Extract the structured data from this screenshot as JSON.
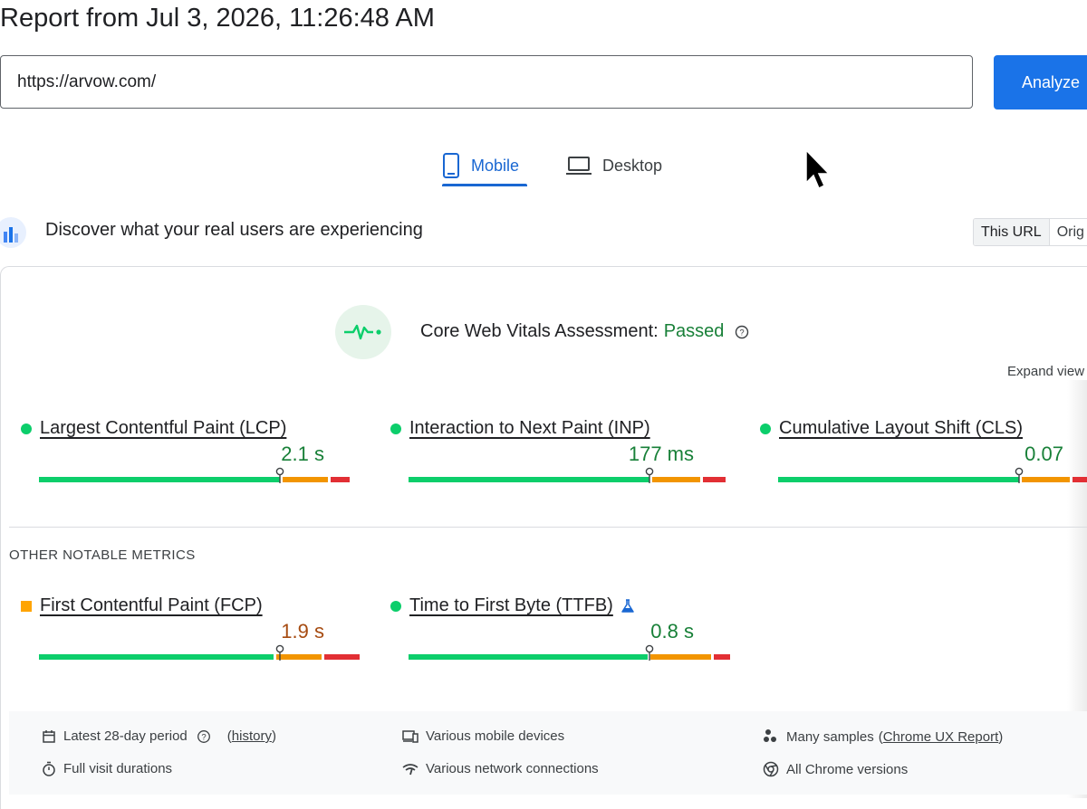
{
  "report": {
    "title": "Report from Jul 3, 2026, 11:26:48 AM"
  },
  "url_input": {
    "value": "https://arvow.com/"
  },
  "analyze_button": {
    "label": "Analyze"
  },
  "tabs": [
    {
      "label": "Mobile",
      "icon": "smartphone-icon",
      "selected": true
    },
    {
      "label": "Desktop",
      "icon": "laptop-icon",
      "selected": false
    }
  ],
  "discover": {
    "heading": "Discover what your real users are experiencing",
    "icon": "crux-chart-icon"
  },
  "url_toggle": {
    "this_url": "This URL",
    "origin": "Orig"
  },
  "assessment": {
    "label": "Core Web Vitals Assessment:",
    "status": "Passed",
    "status_color": "#188038",
    "help_icon": "help-circle-icon"
  },
  "expand_view": "Expand view",
  "core_metrics": [
    {
      "name": "Largest Contentful Paint (LCP)",
      "value": "2.1 s",
      "rating": "good",
      "distribution": {
        "good": 0.75,
        "needs_improvement": 0.14,
        "poor": 0.06
      },
      "marker": 0.75
    },
    {
      "name": "Interaction to Next Paint (INP)",
      "value": "177 ms",
      "rating": "good",
      "distribution": {
        "good": 0.75,
        "needs_improvement": 0.15,
        "poor": 0.07
      },
      "marker": 0.75
    },
    {
      "name": "Cumulative Layout Shift (CLS)",
      "value": "0.07",
      "rating": "good",
      "distribution": {
        "good": 0.75,
        "needs_improvement": 0.15,
        "poor": 0.05
      },
      "marker": 0.75
    }
  ],
  "other_heading": "OTHER NOTABLE METRICS",
  "other_metrics": [
    {
      "name": "First Contentful Paint (FCP)",
      "value": "1.9 s",
      "rating": "average",
      "distribution": {
        "good": 0.73,
        "needs_improvement": 0.14,
        "poor": 0.11
      },
      "marker": 0.75
    },
    {
      "name": "Time to First Byte (TTFB)",
      "value": "0.8 s",
      "rating": "good",
      "experimental_icon": "flask-icon",
      "distribution": {
        "good": 0.75,
        "needs_improvement": 0.19,
        "poor": 0.05
      },
      "marker": 0.75
    }
  ],
  "colors": {
    "good": "#0cce6b",
    "needs_improvement": "#f29500",
    "poor": "#e22f34",
    "average_text": "#a64b11",
    "accent": "#1a73e8"
  },
  "footer": {
    "period": {
      "text": "Latest 28-day period",
      "link": "history",
      "icon": "calendar-icon"
    },
    "durations": {
      "text": "Full visit durations",
      "icon": "stopwatch-icon"
    },
    "devices": {
      "text": "Various mobile devices",
      "icon": "devices-icon"
    },
    "network": {
      "text": "Various network connections",
      "icon": "wifi-icon"
    },
    "samples": {
      "text": "Many samples",
      "link": "Chrome UX Report",
      "icon": "people-icon"
    },
    "versions": {
      "text": "All Chrome versions",
      "icon": "chrome-icon"
    }
  }
}
